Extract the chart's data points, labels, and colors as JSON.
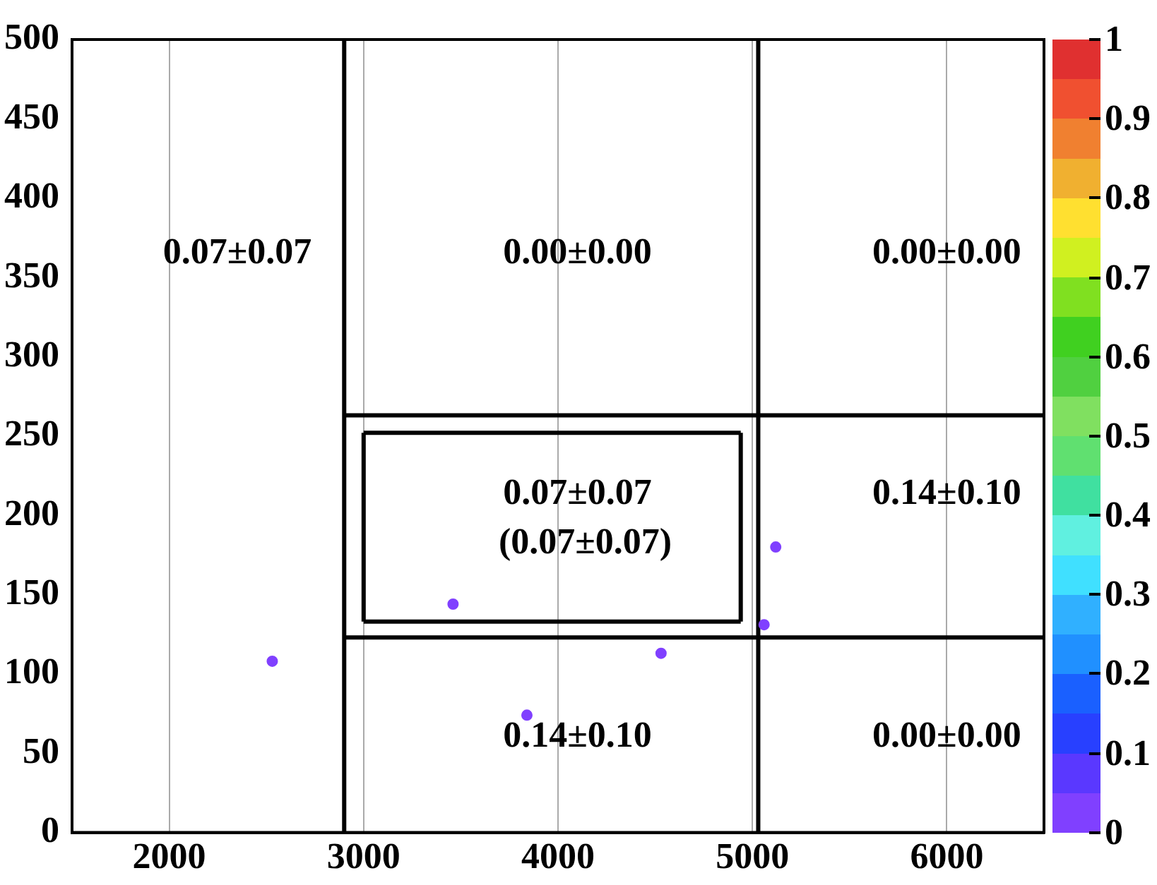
{
  "chart_data": {
    "type": "scatter",
    "xlim": [
      1500,
      6500
    ],
    "xticks": [
      2000,
      3000,
      4000,
      5000,
      6000
    ],
    "ylim": [
      0,
      500
    ],
    "yticks": [
      0,
      50,
      100,
      150,
      200,
      250,
      300,
      350,
      400,
      450,
      500
    ],
    "grid": "x",
    "legend": false,
    "marker": "circle",
    "clim": [
      0,
      1
    ],
    "cticks": [
      0,
      0.1,
      0.2,
      0.3,
      0.4,
      0.5,
      0.6,
      0.7,
      0.8,
      0.9,
      1
    ],
    "series": [
      {
        "type": "scatter",
        "x": [
          2530,
          3460,
          3840,
          4530,
          5060,
          5120
        ],
        "values": [
          108,
          144,
          74,
          113,
          131,
          180
        ],
        "cvalues": [
          0,
          0,
          0,
          0,
          0,
          0
        ]
      },
      {
        "type": "line",
        "marker": "none",
        "color": "#000000",
        "x": [
          2900,
          2900
        ],
        "values": [
          0,
          500
        ]
      },
      {
        "type": "line",
        "marker": "none",
        "color": "#000000",
        "x": [
          5030,
          5030
        ],
        "values": [
          0,
          500
        ]
      },
      {
        "type": "line",
        "marker": "none",
        "color": "#000000",
        "x": [
          2900,
          6500
        ],
        "values": [
          263,
          263
        ]
      },
      {
        "type": "line",
        "marker": "none",
        "color": "#000000",
        "x": [
          2900,
          6500
        ],
        "values": [
          123,
          123
        ]
      },
      {
        "type": "line",
        "marker": "none",
        "color": "#000000",
        "x": [
          3000,
          4940
        ],
        "values": [
          133,
          133
        ]
      },
      {
        "type": "line",
        "marker": "none",
        "color": "#000000",
        "x": [
          3000,
          4940
        ],
        "values": [
          252,
          252
        ]
      },
      {
        "type": "line",
        "marker": "none",
        "color": "#000000",
        "x": [
          3000,
          3000
        ],
        "values": [
          133,
          252
        ]
      },
      {
        "type": "line",
        "marker": "none",
        "color": "#000000",
        "x": [
          4940,
          4940
        ],
        "values": [
          133,
          252
        ]
      }
    ],
    "annotations": [
      "0.07±0.07",
      "0.00±0.00",
      "0.00±0.00",
      "0.07±0.07",
      "(0.07±0.07)",
      "0.14±0.10",
      "0.14±0.10",
      "0.00±0.00"
    ]
  }
}
